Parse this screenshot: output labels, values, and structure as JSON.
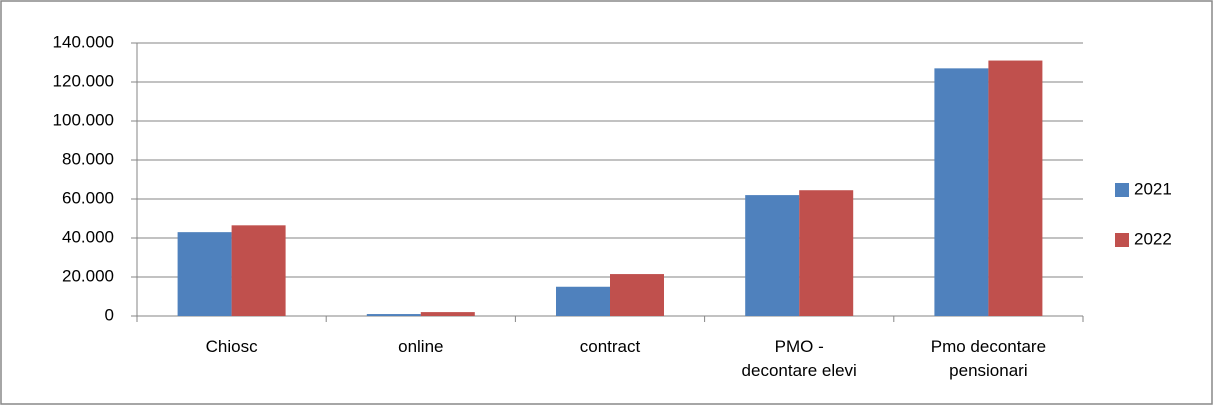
{
  "chart_data": {
    "type": "bar",
    "categories": [
      "Chiosc",
      "online",
      "contract",
      "PMO -\ndecontare elevi",
      "Pmo decontare\npensionari"
    ],
    "series": [
      {
        "name": "2021",
        "color": "#4f81bd",
        "values": [
          43000,
          1000,
          15000,
          62000,
          127000
        ]
      },
      {
        "name": "2022",
        "color": "#c0504d",
        "values": [
          46500,
          2000,
          21500,
          64500,
          131000
        ]
      }
    ],
    "ylim": [
      0,
      140000
    ],
    "yticks": [
      0,
      {
        "value": 20000,
        "label": "20.000"
      },
      {
        "value": 40000,
        "label": "40.000"
      },
      {
        "value": 60000,
        "label": "60.000"
      },
      {
        "value": 80000,
        "label": "80.000"
      },
      {
        "value": 100000,
        "label": "100.000"
      },
      {
        "value": 120000,
        "label": "120.000"
      },
      {
        "value": 140000,
        "label": "140.000"
      }
    ],
    "grid": true,
    "legend": "right"
  }
}
